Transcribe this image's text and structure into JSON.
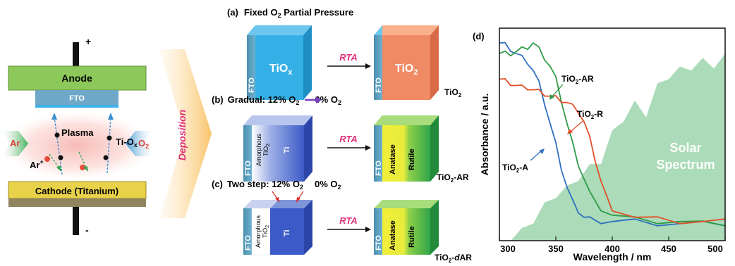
{
  "sputter": {
    "plus": "+",
    "minus": "-",
    "anode": "Anode",
    "fto": "FTO",
    "plasma": "Plasma",
    "tiox_main": "Ti-O",
    "tiox_sub": "x",
    "ar_ion_main": "Ar",
    "ar_ion_sup": "+",
    "ar_gas": "Ar",
    "o2_main": "O",
    "o2_sub": "2",
    "cathode": "Cathode (Titanium)",
    "deposition": "Deposition",
    "colors": {
      "anode": "#8dc85a",
      "fto": "#6fa8c8",
      "cathode": "#e8d24a",
      "ar": "#d8413a",
      "o2": "#2a6fb0",
      "deposition": "#e0307a"
    }
  },
  "panel_a": {
    "label": "(a)",
    "title_pre": "Fixed O",
    "title_sub": "2",
    "title_post": " Partial Pressure",
    "block1_main": "TiO",
    "block1_sub": "x",
    "rta": "RTA",
    "block2_main": "TiO",
    "block2_sub": "2",
    "fto": "FTO",
    "result_main": "TiO",
    "result_sub": "2"
  },
  "panel_b": {
    "label": "(b)",
    "title_pre": "Gradual:  12% O",
    "title_sub1": "2",
    "title_mid": "0% O",
    "title_sub2": "2",
    "fto": "FTO",
    "amorphous": "Amorphous",
    "tio2_main": "TiO",
    "tio2_sub": "2",
    "ti": "Ti",
    "rta": "RTA",
    "anatase": "Anatase",
    "rutile": "Rutile",
    "result_main": "TiO",
    "result_sub": "2",
    "result_post": "-AR"
  },
  "panel_c": {
    "label": "(c)",
    "title_pre": "Two step: 12% O",
    "title_sub1": "2",
    "title_mid": "0% O",
    "title_sub2": "2",
    "fto": "FTO",
    "amorphous": "Amorphous",
    "tio2_main": "TiO",
    "tio2_sub": "2",
    "ti": "Ti",
    "rta": "RTA",
    "anatase": "Anatase",
    "rutile": "Rutile",
    "result_main": "TiO",
    "result_sub": "2",
    "result_post": "-",
    "result_italic": "d",
    "result_end": "AR"
  },
  "chart_data": {
    "type": "line",
    "panel_label": "(d)",
    "xlabel": "Wavelength / nm",
    "ylabel": "Absorbance / a.u.",
    "xlim": [
      300,
      500
    ],
    "xticks": [
      "300",
      "350",
      "400",
      "450",
      "500"
    ],
    "annotation_solar_line1": "Solar",
    "annotation_solar_line2": "Spectrum",
    "series": [
      {
        "name": "TiO2-A",
        "label_main": "TiO",
        "label_sub": "2",
        "label_post": "-A",
        "color": "#2f6fc0",
        "x": [
          300,
          305,
          310,
          315,
          320,
          325,
          330,
          335,
          340,
          345,
          350,
          355,
          360,
          365,
          370,
          375,
          380,
          390,
          400,
          420,
          440,
          460,
          480,
          500
        ],
        "y": [
          0.93,
          0.92,
          0.9,
          0.88,
          0.86,
          0.84,
          0.8,
          0.74,
          0.65,
          0.55,
          0.45,
          0.34,
          0.25,
          0.18,
          0.14,
          0.11,
          0.1,
          0.09,
          0.09,
          0.09,
          0.08,
          0.08,
          0.08,
          0.08
        ]
      },
      {
        "name": "TiO2-AR",
        "label_main": "TiO",
        "label_sub": "2",
        "label_post": "-AR",
        "color": "#2e9a48",
        "x": [
          300,
          305,
          310,
          315,
          320,
          325,
          330,
          335,
          340,
          345,
          350,
          355,
          360,
          365,
          370,
          375,
          380,
          390,
          400,
          420,
          440,
          460,
          480,
          500
        ],
        "y": [
          0.88,
          0.88,
          0.88,
          0.89,
          0.9,
          0.91,
          0.93,
          0.9,
          0.86,
          0.82,
          0.76,
          0.66,
          0.55,
          0.45,
          0.36,
          0.29,
          0.22,
          0.15,
          0.12,
          0.1,
          0.09,
          0.09,
          0.08,
          0.08
        ]
      },
      {
        "name": "TiO2-R",
        "label_main": "TiO",
        "label_sub": "2",
        "label_post": "-R",
        "color": "#e0502a",
        "x": [
          300,
          305,
          310,
          315,
          320,
          325,
          330,
          335,
          340,
          345,
          350,
          355,
          360,
          365,
          370,
          375,
          380,
          385,
          390,
          395,
          400,
          420,
          440,
          460,
          480,
          500
        ],
        "y": [
          0.76,
          0.75,
          0.74,
          0.73,
          0.72,
          0.72,
          0.71,
          0.7,
          0.69,
          0.68,
          0.67,
          0.66,
          0.65,
          0.63,
          0.61,
          0.56,
          0.48,
          0.38,
          0.28,
          0.2,
          0.15,
          0.11,
          0.1,
          0.09,
          0.09,
          0.09
        ]
      }
    ],
    "solar": {
      "x": [
        300,
        310,
        320,
        330,
        340,
        350,
        360,
        370,
        380,
        390,
        400,
        410,
        420,
        430,
        440,
        450,
        460,
        470,
        480,
        490,
        500
      ],
      "y": [
        0.0,
        0.02,
        0.06,
        0.12,
        0.18,
        0.24,
        0.26,
        0.32,
        0.36,
        0.4,
        0.52,
        0.6,
        0.66,
        0.62,
        0.74,
        0.8,
        0.82,
        0.84,
        0.86,
        0.85,
        0.88
      ],
      "color": "#8fcfa0"
    }
  }
}
